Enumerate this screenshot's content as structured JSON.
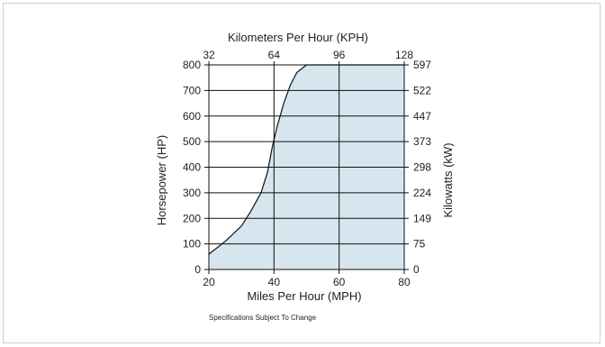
{
  "chart_data": {
    "type": "area",
    "title": "",
    "xlabel": "Miles Per Hour (MPH)",
    "ylabel": "Horsepower (HP)",
    "top_xlabel": "Kilometers Per Hour (KPH)",
    "right_ylabel": "Kilowatts (kW)",
    "xlim": [
      20,
      80
    ],
    "ylim": [
      0,
      800
    ],
    "x_ticks": [
      "20",
      "40",
      "60",
      "80"
    ],
    "x_tick_values": [
      20,
      40,
      60,
      80
    ],
    "y_ticks": [
      "0",
      "100",
      "200",
      "300",
      "400",
      "500",
      "600",
      "700",
      "800"
    ],
    "y_tick_values": [
      0,
      100,
      200,
      300,
      400,
      500,
      600,
      700,
      800
    ],
    "top_ticks": [
      "32",
      "64",
      "96",
      "128"
    ],
    "top_tick_values": [
      20,
      40,
      60,
      80
    ],
    "right_ticks": [
      "0",
      "75",
      "149",
      "224",
      "298",
      "373",
      "447",
      "522",
      "597"
    ],
    "right_tick_values": [
      0,
      100,
      200,
      300,
      400,
      500,
      600,
      700,
      800
    ],
    "grid": "horizontal and vertical at labeled ticks",
    "series": [
      {
        "x": [
          20,
          25,
          30,
          33,
          36,
          38,
          39.5,
          41,
          43,
          45,
          47,
          50,
          55,
          60,
          70,
          80
        ],
        "y": [
          60,
          110,
          170,
          230,
          300,
          380,
          480,
          560,
          650,
          720,
          770,
          800,
          800,
          800,
          800,
          800
        ]
      }
    ],
    "fill_color": "#d6e5ee",
    "line_color": "#111111"
  },
  "footnote": "Specifications Subject To Change"
}
